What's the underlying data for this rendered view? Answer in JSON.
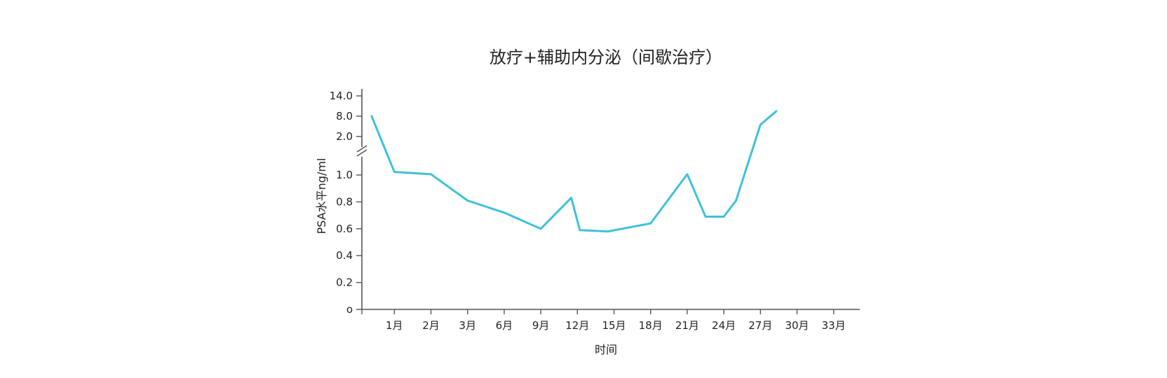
{
  "chart_data": {
    "type": "line",
    "title": "放疗+辅助内分泌（间歇治疗）",
    "xlabel": "时间",
    "ylabel": "PSA水平ng/ml",
    "x_ticks": [
      "1月",
      "2月",
      "3月",
      "6月",
      "9月",
      "12月",
      "15月",
      "18月",
      "21月",
      "24月",
      "27月",
      "30月",
      "33月"
    ],
    "y_ticks_lower": [
      "o",
      "0.2",
      "0.4",
      "0.6",
      "0.8",
      "1.0"
    ],
    "y_ticks_upper": [
      "2.0",
      "8.0",
      "14.0"
    ],
    "y_axis_break": true,
    "ylim_lower": [
      0,
      1.0
    ],
    "ylim_upper": [
      2.0,
      14.0
    ],
    "xlim": [
      0,
      33
    ],
    "grid": false,
    "legend": "none",
    "series_color": "#3FC1D9",
    "series": [
      {
        "x": [
          0.3,
          1,
          2,
          3,
          6,
          9,
          11.5,
          12.2,
          14.5,
          18,
          21,
          22.5,
          24,
          25,
          27,
          28.3
        ],
        "values": [
          8.0,
          1.08,
          1.02,
          0.81,
          0.72,
          0.6,
          0.83,
          0.59,
          0.58,
          0.64,
          1.02,
          0.69,
          0.69,
          0.81,
          5.5,
          9.5
        ]
      }
    ]
  }
}
